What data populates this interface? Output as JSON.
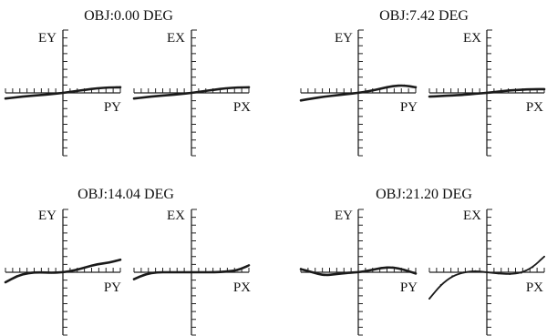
{
  "chart_data": {
    "type": "line",
    "x": [
      -1.0,
      -0.8,
      -0.6,
      -0.4,
      -0.2,
      0.0,
      0.2,
      0.4,
      0.6,
      0.8,
      1.0
    ],
    "xlim": [
      -1,
      1
    ],
    "ylim": [
      -1,
      1
    ],
    "fields": [
      {
        "title": "OBJ:0.00 DEG",
        "plots": [
          {
            "ylabel": "EY",
            "xlabel": "PY",
            "values": [
              -0.09,
              -0.07,
              -0.05,
              -0.035,
              -0.02,
              0.0,
              0.025,
              0.05,
              0.075,
              0.085,
              0.09
            ]
          },
          {
            "ylabel": "EX",
            "xlabel": "PX",
            "values": [
              -0.09,
              -0.07,
              -0.05,
              -0.035,
              -0.02,
              0.0,
              0.025,
              0.05,
              0.075,
              0.085,
              0.09
            ]
          }
        ]
      },
      {
        "title": "OBJ:7.42 DEG",
        "plots": [
          {
            "ylabel": "EY",
            "xlabel": "PY",
            "values": [
              -0.12,
              -0.09,
              -0.06,
              -0.04,
              -0.02,
              0.0,
              0.03,
              0.07,
              0.11,
              0.12,
              0.09
            ]
          },
          {
            "ylabel": "EX",
            "xlabel": "PX",
            "values": [
              -0.06,
              -0.05,
              -0.04,
              -0.03,
              -0.015,
              0.0,
              0.02,
              0.04,
              0.05,
              0.06,
              0.06
            ]
          }
        ]
      },
      {
        "title": "OBJ:14.04 DEG",
        "plots": [
          {
            "ylabel": "EY",
            "xlabel": "PY",
            "values": [
              -0.16,
              -0.06,
              -0.01,
              0.0,
              -0.01,
              0.0,
              0.03,
              0.08,
              0.13,
              0.15,
              0.2
            ]
          },
          {
            "ylabel": "EX",
            "xlabel": "PX",
            "values": [
              -0.11,
              -0.03,
              0.0,
              0.0,
              0.0,
              0.0,
              0.0,
              0.0,
              0.01,
              0.03,
              0.11
            ]
          }
        ]
      },
      {
        "title": "OBJ:21.20 DEG",
        "plots": [
          {
            "ylabel": "EY",
            "xlabel": "PY",
            "values": [
              0.05,
              0.0,
              -0.05,
              -0.03,
              -0.01,
              0.0,
              0.03,
              0.07,
              0.08,
              0.04,
              -0.02
            ]
          },
          {
            "ylabel": "EX",
            "xlabel": "PX",
            "values": [
              -0.42,
              -0.2,
              -0.06,
              0.0,
              0.02,
              0.0,
              -0.02,
              -0.03,
              -0.01,
              0.08,
              0.25
            ]
          }
        ]
      }
    ]
  }
}
